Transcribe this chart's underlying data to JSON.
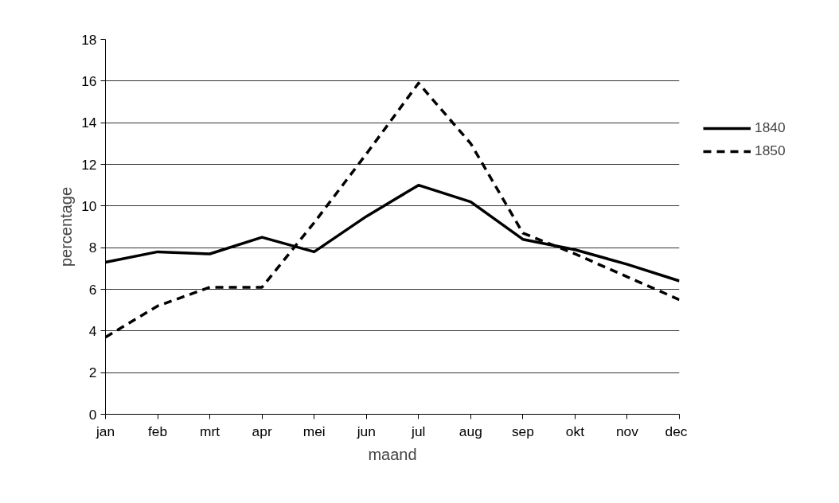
{
  "chart_data": {
    "type": "line",
    "xlabel": "maand",
    "ylabel": "percentage",
    "categories": [
      "jan",
      "feb",
      "mrt",
      "apr",
      "mei",
      "jun",
      "jul",
      "aug",
      "sep",
      "okt",
      "nov",
      "dec"
    ],
    "series": [
      {
        "name": "1840",
        "color": "#000000",
        "line_style": "solid",
        "values": [
          7.3,
          7.8,
          7.7,
          8.5,
          7.8,
          9.5,
          11.0,
          10.2,
          8.4,
          7.9,
          7.2,
          6.4
        ]
      },
      {
        "name": "1850",
        "color": "#000000",
        "line_style": "dashed",
        "values": [
          3.7,
          5.2,
          6.1,
          6.1,
          9.2,
          12.5,
          15.9,
          13.0,
          8.7,
          7.7,
          6.6,
          5.5
        ]
      }
    ],
    "ylim": [
      0,
      18
    ],
    "yticks": [
      0,
      2,
      4,
      6,
      8,
      10,
      12,
      14,
      16,
      18
    ],
    "grid": "y",
    "legend": "right",
    "marker": "none"
  }
}
